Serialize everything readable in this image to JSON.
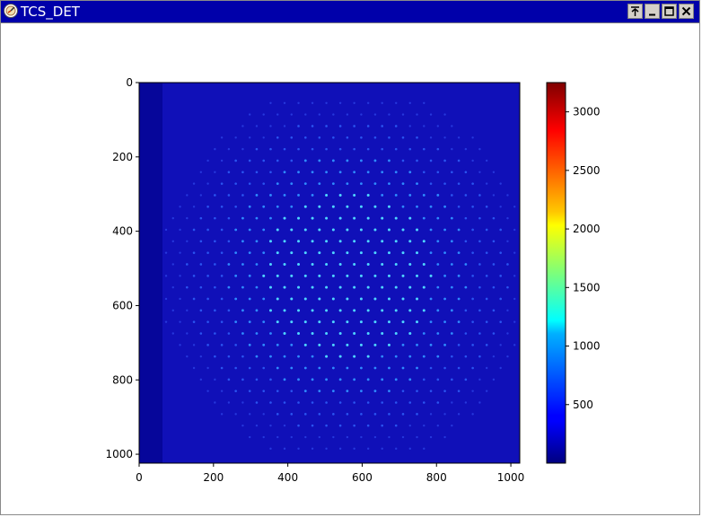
{
  "window": {
    "title": "TCS_DET",
    "buttons": [
      "pin-icon",
      "minimize-icon",
      "maximize-icon",
      "close-icon"
    ]
  },
  "chart_data": {
    "type": "heatmap",
    "description_of_content": "detector image of a regular grid of bright spots",
    "x_ticks": [
      "0",
      "200",
      "400",
      "600",
      "800",
      "1000"
    ],
    "y_ticks": [
      "0",
      "200",
      "400",
      "600",
      "800",
      "1000"
    ],
    "xlim": [
      0,
      1024
    ],
    "ylim": [
      1024,
      0
    ],
    "colormap": "jet",
    "colorbar_ticks": [
      "500",
      "1000",
      "1500",
      "2000",
      "2500",
      "3000"
    ],
    "colorbar_range": [
      0,
      3250
    ],
    "grid": false
  },
  "colors": {
    "titlebar": "#0000aa",
    "background_value": "#1515c8"
  }
}
